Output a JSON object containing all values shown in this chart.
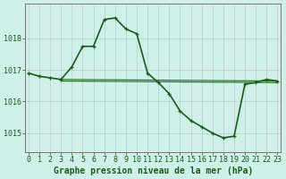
{
  "series1": {
    "x": [
      0,
      1,
      2,
      3,
      4,
      5,
      6,
      7,
      8,
      9,
      10,
      11,
      12,
      13,
      14,
      15,
      16,
      17,
      18,
      19,
      20,
      21,
      22,
      23
    ],
    "y": [
      1016.9,
      1016.8,
      1016.75,
      1016.7,
      1017.1,
      1017.75,
      1017.75,
      1018.6,
      1018.65,
      1018.3,
      1018.15,
      1016.9,
      1016.6,
      1016.25,
      1015.7,
      1015.4,
      1015.2,
      1015.0,
      1014.85,
      1014.9,
      1016.55,
      1016.6,
      1016.7,
      1016.65
    ],
    "color": "#1a5c1a",
    "linewidth": 1.2
  },
  "series2": {
    "x": [
      3,
      23
    ],
    "y": [
      1016.7,
      1016.65
    ],
    "color": "#2d7a2d",
    "linewidth": 0.9
  },
  "series3": {
    "x": [
      3,
      23
    ],
    "y": [
      1016.65,
      1016.6
    ],
    "color": "#2d7a2d",
    "linewidth": 0.9
  },
  "bg_color": "#cef0e8",
  "grid_color": "#b0b0b0",
  "xlabel": "Graphe pression niveau de la mer (hPa)",
  "ylim": [
    1014.4,
    1019.1
  ],
  "yticks": [
    1015,
    1016,
    1017,
    1018
  ],
  "xticks": [
    0,
    1,
    2,
    3,
    4,
    5,
    6,
    7,
    8,
    9,
    10,
    11,
    12,
    13,
    14,
    15,
    16,
    17,
    18,
    19,
    20,
    21,
    22,
    23
  ],
  "tick_color": "#1a5c1a",
  "label_color": "#1a5c1a",
  "xlabel_fontsize": 7,
  "tick_fontsize": 6,
  "marker_size": 3.5,
  "marker_color": "#1a5c1a"
}
